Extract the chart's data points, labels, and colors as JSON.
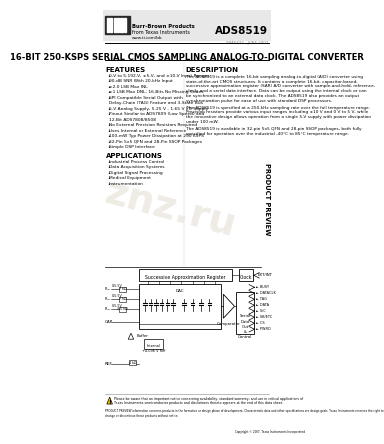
{
  "title": "16-BIT 250-KSPS SERIAL CMOS SAMPLING ANALOG-TO-DIGITAL CONVERTER",
  "part_number": "ADS8519",
  "company_line1": "Burr-Brown Products",
  "company_line2": "from Texas Instruments",
  "website": "www.ti.com/bb",
  "date_line": "SBAS432 - JUNE 2007",
  "features_title": "FEATURES",
  "features": [
    "0-V to 5.192-V, ±5-V, and ±10-V Input Ranges",
    "90-dB SNR With 20-kHz Input",
    "±2.0 LSB Max INL",
    "±1 LSB Max DNL; 16-Bits No Missing Codes",
    "SPI Compatible Serial Output with|Delay-Chain (TAG) Feature and 3-State Bus",
    "5-V Analog Supply, 5.25 V - 1.65 V I/O Supply",
    "Pinout Similar to ADS7809 (Low Speed) and|12-Bit ADS7808/8508",
    "No External Precision Resistors Required",
    "Uses Internal or External Reference",
    "100-mW Typ Power Dissipation at 250 KSPS",
    "32-Pin 5x5 QFN and 28-Pin SSOP Packages",
    "Simple DSP Interface"
  ],
  "applications_title": "APPLICATIONS",
  "applications": [
    "Industrial Process Control",
    "Data Acquisition Systems",
    "Digital Signal Processing",
    "Medical Equipment",
    "Instrumentation"
  ],
  "description_title": "DESCRIPTION",
  "desc1": "The ADS8519 is a complete 16-bit sampling analog-to-digital (A/D) converter using state-of-the-art CMOS structures. It contains a complete 16-bit, capacitor-based, successive approximation register (SAR) A/D converter with sample-and-hold, reference, clock, and a serial data interface. Data can be output using the internal clock or can be synchronized to an external data clock. The ADS8519 also provides an output synchronization pulse for ease of use with standard DSP processors.",
  "desc2": "The ADS8519 is specified at a 250-kHz sampling rate over the full temperature range. Precision resistors provide various input ranges including ±10 V and 0 V to 5 V, while the innovative design allows operation from a single 5-V supply with power dissipation under 100 mW.",
  "desc3": "The ADS8519 is available in 32-pin 5x5 QFN and 28-pin SSOP packages, both fully specified for operation over the industrial -40°C to 85°C temperature range.",
  "product_preview": "PRODUCT PREVIEW",
  "footer1": "Please be aware that an important notice concerning availability, standard warranty, and use in critical applications of",
  "footer2": "Texas Instruments semiconductor products and disclaimers thereto appears at the end of this data sheet.",
  "footer3": "PRODUCT PREVIEW information concerns products in the formative or design phase of development. Characteristic data and other specifications are design goals. Texas Instruments reserves the right to change or discontinue these products without notice.",
  "footer4": "Copyright © 2007, Texas Instruments Incorporated",
  "bg": "#ffffff"
}
